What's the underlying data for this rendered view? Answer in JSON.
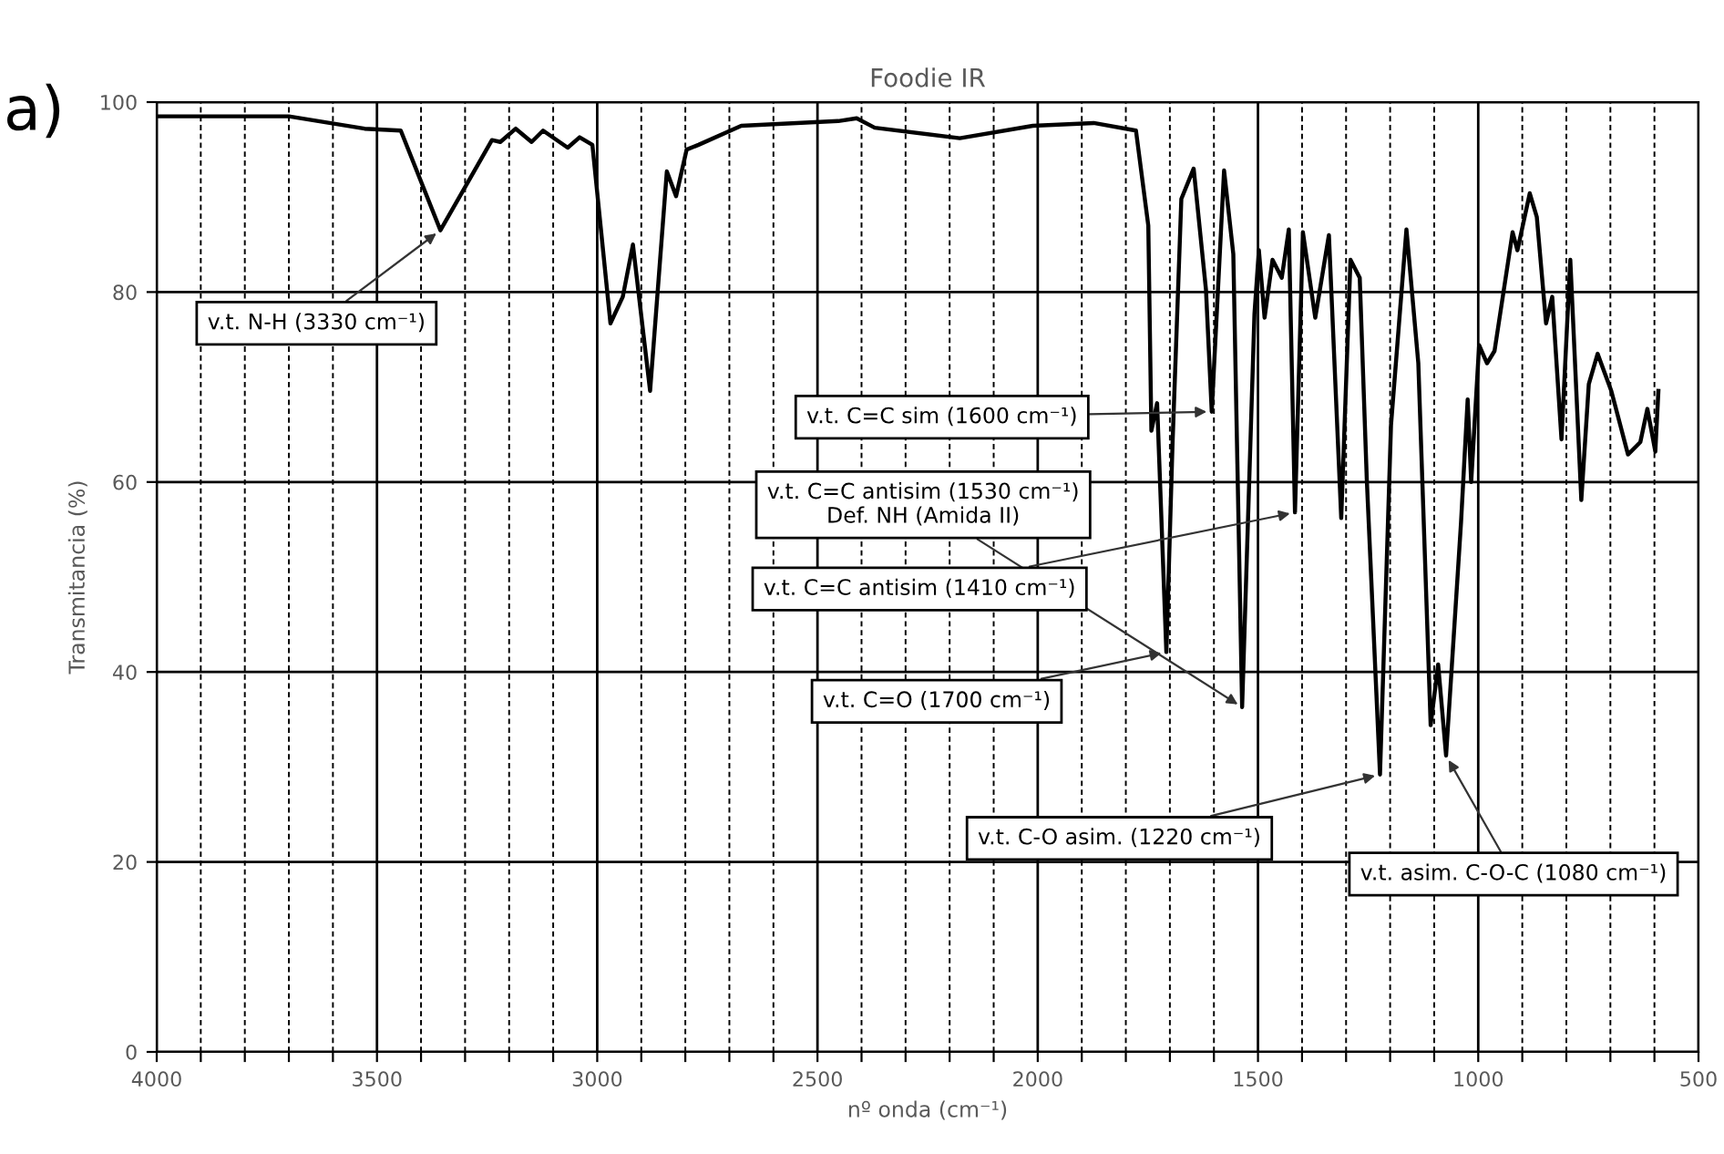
{
  "chart_data": {
    "type": "line",
    "title": "Foodie IR",
    "xlabel": "nº onda (cm⁻¹)",
    "ylabel": "Transmitancia (%)",
    "x": [
      4000,
      3700,
      3528,
      3446,
      3356,
      3239,
      3220,
      3185,
      3149,
      3123,
      3067,
      3040,
      3011,
      2970,
      2942,
      2919,
      2880,
      2842,
      2821,
      2797,
      2770,
      2673,
      2453,
      2411,
      2370,
      2177,
      2011,
      1873,
      1777,
      1749,
      1742,
      1729,
      1708,
      1694,
      1674,
      1646,
      1618,
      1605,
      1577,
      1556,
      1536,
      1508,
      1498,
      1485,
      1467,
      1446,
      1430,
      1416,
      1398,
      1370,
      1339,
      1311,
      1290,
      1269,
      1253,
      1223,
      1198,
      1163,
      1136,
      1108,
      1091,
      1073,
      1039,
      1024,
      1016,
      998,
      980,
      963,
      922,
      911,
      883,
      867,
      846,
      832,
      811,
      791,
      766,
      749,
      729,
      698,
      660,
      632,
      616,
      598,
      591
    ],
    "series": [
      {
        "color": "#000000",
        "values": [
          98.5,
          98.5,
          97.2,
          97,
          86.5,
          96,
          95.8,
          97.2,
          95.8,
          97,
          95.2,
          96.3,
          95.5,
          76.7,
          79.5,
          85,
          69.6,
          92.7,
          90.1,
          95,
          95.5,
          97.5,
          98,
          98.3,
          97.3,
          96.2,
          97.5,
          97.8,
          97,
          87,
          65.4,
          68.3,
          42.1,
          64,
          89.8,
          93,
          80.2,
          67.4,
          92.8,
          84,
          36.3,
          77.7,
          84.4,
          77.3,
          83.4,
          81.5,
          86.6,
          56.8,
          86.3,
          77.3,
          86,
          56.2,
          83.4,
          81.5,
          60.3,
          29.2,
          66,
          86.6,
          72.5,
          34.4,
          40.8,
          31.2,
          55.8,
          68.7,
          60,
          74.4,
          72.5,
          73.8,
          86.3,
          84.4,
          90.4,
          87.9,
          76.7,
          79.5,
          64.5,
          83.4,
          58.1,
          70.3,
          73.5,
          69.6,
          62.9,
          64.2,
          67.7,
          63.2,
          69.6
        ]
      }
    ],
    "xlim": [
      4000,
      500
    ],
    "xticks": [
      4000,
      {
        "value": 3900,
        "label": null
      },
      {
        "value": 3800,
        "label": null
      },
      {
        "value": 3700,
        "label": null
      },
      {
        "value": 3600,
        "label": null
      },
      3500,
      {
        "value": 3400,
        "label": null
      },
      {
        "value": 3300,
        "label": null
      },
      {
        "value": 3200,
        "label": null
      },
      {
        "value": 3100,
        "label": null
      },
      3000,
      {
        "value": 2900,
        "label": null
      },
      {
        "value": 2800,
        "label": null
      },
      {
        "value": 2700,
        "label": null
      },
      {
        "value": 2600,
        "label": null
      },
      2500,
      {
        "value": 2400,
        "label": null
      },
      {
        "value": 2300,
        "label": null
      },
      {
        "value": 2200,
        "label": null
      },
      {
        "value": 2100,
        "label": null
      },
      2000,
      {
        "value": 1900,
        "label": null
      },
      {
        "value": 1800,
        "label": null
      },
      {
        "value": 1700,
        "label": null
      },
      {
        "value": 1600,
        "label": null
      },
      1500,
      {
        "value": 1400,
        "label": null
      },
      {
        "value": 1300,
        "label": null
      },
      {
        "value": 1200,
        "label": null
      },
      {
        "value": 1100,
        "label": null
      },
      1000,
      {
        "value": 900,
        "label": null
      },
      {
        "value": 800,
        "label": null
      },
      {
        "value": 700,
        "label": null
      },
      {
        "value": 600,
        "label": null
      },
      500
    ],
    "ylim": [
      0,
      100
    ],
    "yticks": [
      0,
      20,
      40,
      60,
      80,
      100
    ],
    "grid": true,
    "line_style": "solid",
    "marker": "none",
    "annotations": [
      "a)",
      {
        "text": "v.t. N-H (3330 cm⁻¹)",
        "x": 3356,
        "y": 86.5
      },
      {
        "text": "v.t. C=C sim (1600 cm⁻¹)",
        "x": 1605,
        "y": 67.4
      },
      {
        "text": "v.t. C=C antisim (1530 cm⁻¹)\nDef. NH (Amida II)",
        "x": 1536,
        "y": 36.3
      },
      {
        "text": "v.t. C=C antisim (1410 cm⁻¹)",
        "x": 1416,
        "y": 56.8
      },
      {
        "text": "v.t. C=O (1700 cm⁻¹)",
        "x": 1708,
        "y": 42.1
      },
      {
        "text": "v.t. C-O asim. (1220 cm⁻¹)",
        "x": 1223,
        "y": 29.2
      },
      {
        "text": "v.t. asim. C-O-C (1080 cm⁻¹)",
        "x": 1073,
        "y": 31.2
      }
    ]
  }
}
